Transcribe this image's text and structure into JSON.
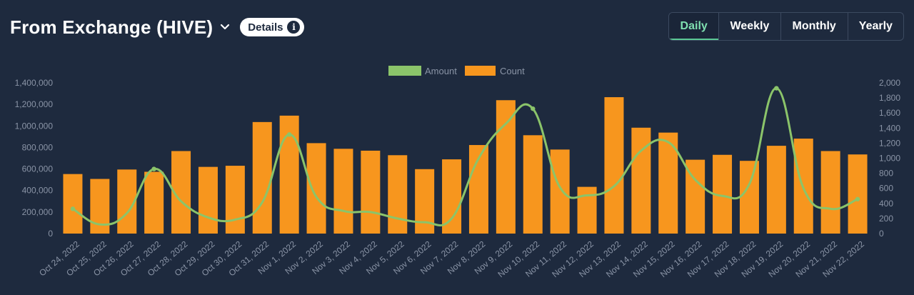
{
  "header": {
    "title": "From Exchange (HIVE)",
    "details_label": "Details",
    "info_icon": "info-icon",
    "dropdown_icon": "chevron-down-icon"
  },
  "tabs": [
    {
      "label": "Daily",
      "active": true
    },
    {
      "label": "Weekly",
      "active": false
    },
    {
      "label": "Monthly",
      "active": false
    },
    {
      "label": "Yearly",
      "active": false
    }
  ],
  "colors": {
    "background": "#1e2a3e",
    "amount_line": "#8bc46a",
    "count_bar": "#f7961e",
    "axis_text": "#8a94a6",
    "active_tab": "#5bc894"
  },
  "chart_data": {
    "type": "bar",
    "categories": [
      "Oct 24, 2022",
      "Oct 25, 2022",
      "Oct 26, 2022",
      "Oct 27, 2022",
      "Oct 28, 2022",
      "Oct 29, 2022",
      "Oct 30, 2022",
      "Oct 31, 2022",
      "Nov 1, 2022",
      "Nov 2, 2022",
      "Nov 3, 2022",
      "Nov 4, 2022",
      "Nov 5, 2022",
      "Nov 6, 2022",
      "Nov 7, 2022",
      "Nov 8, 2022",
      "Nov 9, 2022",
      "Nov 10, 2022",
      "Nov 11, 2022",
      "Nov 12, 2022",
      "Nov 13, 2022",
      "Nov 14, 2022",
      "Nov 15, 2022",
      "Nov 16, 2022",
      "Nov 17, 2022",
      "Nov 18, 2022",
      "Nov 19, 2022",
      "Nov 20, 2022",
      "Nov 21, 2022",
      "Nov 22, 2022"
    ],
    "legend_position": "top-center",
    "grid": false,
    "series": [
      {
        "name": "Amount",
        "kind": "line",
        "axis": "left",
        "values": [
          230000,
          85000,
          190000,
          600000,
          300000,
          150000,
          130000,
          290000,
          920000,
          340000,
          210000,
          200000,
          140000,
          105000,
          140000,
          700000,
          1020000,
          1160000,
          430000,
          355000,
          440000,
          770000,
          850000,
          500000,
          350000,
          460000,
          1350000,
          420000,
          230000,
          320000
        ]
      },
      {
        "name": "Count",
        "kind": "bar",
        "axis": "right",
        "values": [
          790,
          725,
          850,
          820,
          1095,
          885,
          900,
          1480,
          1565,
          1200,
          1125,
          1100,
          1040,
          855,
          985,
          1175,
          1770,
          1305,
          1115,
          620,
          1810,
          1405,
          1340,
          980,
          1045,
          965,
          1165,
          1260,
          1095,
          1050
        ]
      }
    ],
    "y_left": {
      "min": 0,
      "max": 1400000,
      "ticks": [
        "0",
        "200,000",
        "400,000",
        "600,000",
        "800,000",
        "1,000,000",
        "1,200,000",
        "1,400,000"
      ]
    },
    "y_right": {
      "min": 0,
      "max": 2000,
      "ticks": [
        "0",
        "200",
        "400",
        "600",
        "800",
        "1,000",
        "1,200",
        "1,400",
        "1,600",
        "1,800",
        "2,000"
      ]
    }
  }
}
